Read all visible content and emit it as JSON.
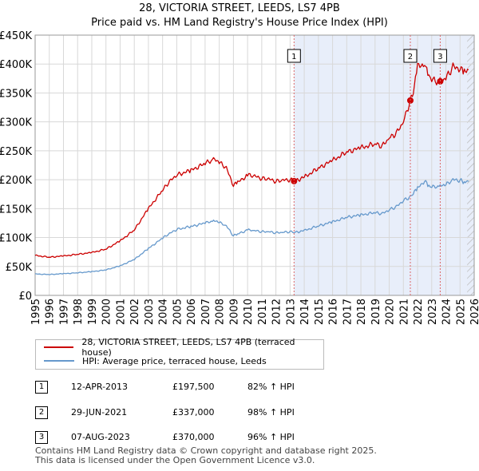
{
  "title_line1": "28, VICTORIA STREET, LEEDS, LS7 4PB",
  "title_line2": "Price paid vs. HM Land Registry's House Price Index (HPI)",
  "colors": {
    "property": "#cc0000",
    "hpi": "#6699cc",
    "shade": "#e8eefa",
    "grid": "#d8d8d8",
    "marker_line": "#dd6666"
  },
  "legend": {
    "property_label": "28, VICTORIA STREET, LEEDS, LS7 4PB (terraced house)",
    "hpi_label": "HPI: Average price, terraced house, Leeds"
  },
  "sales": [
    {
      "num": "1",
      "date": "12-APR-2013",
      "price": "£197,500",
      "hpi_change": "82% ↑ HPI"
    },
    {
      "num": "2",
      "date": "29-JUN-2021",
      "price": "£337,000",
      "hpi_change": "98% ↑ HPI"
    },
    {
      "num": "3",
      "date": "07-AUG-2023",
      "price": "£370,000",
      "hpi_change": "96% ↑ HPI"
    }
  ],
  "footer_line1": "Contains HM Land Registry data © Crown copyright and database right 2025.",
  "footer_line2": "This data is licensed under the Open Government Licence v3.0.",
  "chart_data": {
    "type": "line",
    "title": "28, VICTORIA STREET, LEEDS, LS7 4PB — Price paid vs. HM Land Registry's House Price Index (HPI)",
    "xlim": [
      1995,
      2026
    ],
    "ylim": [
      0,
      450000
    ],
    "x_ticks": [
      1995,
      1996,
      1997,
      1998,
      1999,
      2000,
      2001,
      2002,
      2003,
      2004,
      2005,
      2006,
      2007,
      2008,
      2009,
      2010,
      2011,
      2012,
      2013,
      2014,
      2015,
      2016,
      2017,
      2018,
      2019,
      2020,
      2021,
      2022,
      2023,
      2024,
      2025,
      2026
    ],
    "y_ticks": [
      0,
      50000,
      100000,
      150000,
      200000,
      250000,
      300000,
      350000,
      400000,
      450000
    ],
    "y_tick_labels": [
      "£0",
      "£50K",
      "£100K",
      "£150K",
      "£200K",
      "£250K",
      "£300K",
      "£350K",
      "£400K",
      "£450K"
    ],
    "shaded_region": [
      2013.28,
      2026
    ],
    "future_hatch_start": 2025.5,
    "sale_markers": [
      {
        "label": "1",
        "x": 2013.28,
        "y": 197500
      },
      {
        "label": "2",
        "x": 2021.49,
        "y": 337000
      },
      {
        "label": "3",
        "x": 2023.6,
        "y": 370000
      }
    ],
    "series": [
      {
        "name": "28, VICTORIA STREET, LEEDS, LS7 4PB (terraced house)",
        "x": [
          1995,
          1996,
          1997,
          1998,
          1999,
          2000,
          2001,
          2002,
          2003,
          2004,
          2004.5,
          2005,
          2006,
          2007,
          2007.6,
          2008,
          2008.5,
          2009,
          2009.3,
          2010,
          2010.5,
          2011,
          2011.5,
          2012,
          2012.5,
          2013,
          2013.28,
          2014,
          2015,
          2016,
          2017,
          2018,
          2019,
          2019.5,
          2020,
          2020.5,
          2021,
          2021.49,
          2021.7,
          2022,
          2022.5,
          2022.8,
          2023,
          2023.6,
          2024,
          2024.5,
          2025,
          2025.3,
          2025.6
        ],
        "values": [
          69000,
          66000,
          68000,
          71000,
          74000,
          80000,
          94000,
          113000,
          150000,
          182000,
          197000,
          208000,
          216000,
          228000,
          235000,
          230000,
          220000,
          190000,
          195000,
          208000,
          206000,
          202000,
          201000,
          197000,
          199000,
          200000,
          197500,
          204000,
          220000,
          233000,
          248000,
          255000,
          262000,
          258000,
          272000,
          280000,
          300000,
          337000,
          350000,
          395000,
          400000,
          375000,
          372000,
          370000,
          375000,
          395000,
          392000,
          385000,
          390000
        ]
      },
      {
        "name": "HPI: Average price, terraced house, Leeds",
        "x": [
          1995,
          1996,
          1997,
          1998,
          1999,
          2000,
          2001,
          2002,
          2003,
          2004,
          2004.5,
          2005,
          2006,
          2007,
          2007.6,
          2008,
          2008.5,
          2009,
          2009.3,
          2010,
          2010.5,
          2011,
          2011.5,
          2012,
          2012.5,
          2013,
          2013.28,
          2014,
          2015,
          2016,
          2017,
          2018,
          2019,
          2019.5,
          2020,
          2020.5,
          2021,
          2021.49,
          2021.7,
          2022,
          2022.5,
          2022.8,
          2023,
          2023.6,
          2024,
          2024.5,
          2025,
          2025.3,
          2025.6
        ],
        "values": [
          37000,
          36000,
          37500,
          39000,
          41000,
          44000,
          51000,
          62000,
          81000,
          99000,
          107000,
          114000,
          119000,
          125000,
          129000,
          126000,
          120000,
          103000,
          106000,
          113000,
          112000,
          110000,
          110000,
          108000,
          109000,
          110000,
          108500,
          112000,
          120000,
          127000,
          135000,
          139000,
          143000,
          141000,
          148000,
          153000,
          164000,
          170000,
          176000,
          185000,
          198000,
          188000,
          187000,
          189000,
          191000,
          200000,
          199000,
          195000,
          197000
        ]
      }
    ]
  }
}
